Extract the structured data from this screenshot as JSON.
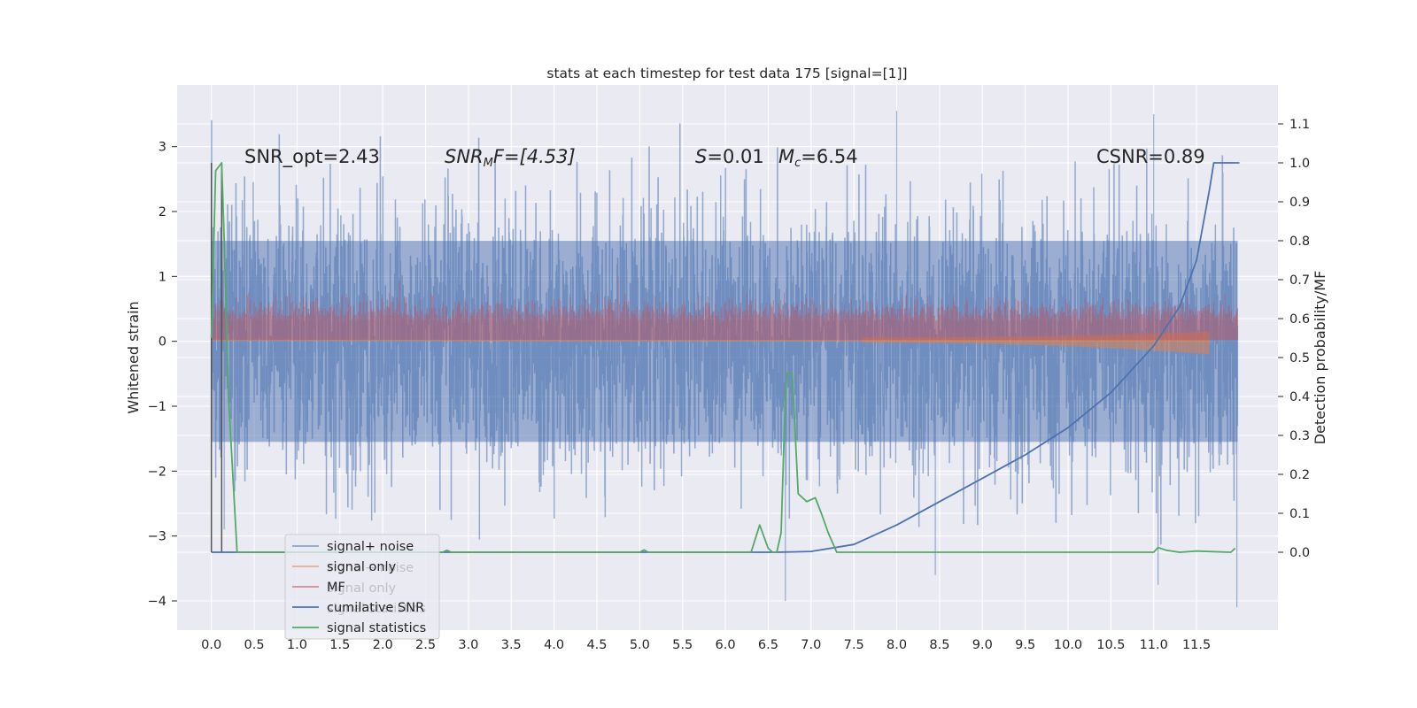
{
  "chart_data": {
    "type": "line",
    "title": "stats at each timestep for test data 175 [signal=[1]]",
    "ylabel": "Whitened strain",
    "y2label": "Detection probability/MF",
    "xlim": [
      -0.4,
      12.45
    ],
    "ylim": [
      -4.45,
      3.95
    ],
    "y2lim": [
      -0.2,
      1.2
    ],
    "grid": true,
    "legend_position": "lower-left",
    "xticks": [
      "0.0",
      "0.5",
      "1.0",
      "1.5",
      "2.0",
      "2.5",
      "3.0",
      "3.5",
      "4.0",
      "4.5",
      "5.0",
      "5.5",
      "6.0",
      "6.5",
      "7.0",
      "7.5",
      "8.0",
      "8.5",
      "9.0",
      "9.5",
      "10.0",
      "10.5",
      "11.0",
      "11.5"
    ],
    "yticks": [
      "3",
      "2",
      "1",
      "0",
      "−1",
      "−2",
      "−3",
      "−4"
    ],
    "y2ticks": [
      "1.1",
      "1.0",
      "0.9",
      "0.8",
      "0.7",
      "0.6",
      "0.5",
      "0.4",
      "0.3",
      "0.2",
      "0.1",
      "0.0"
    ],
    "annotations": {
      "snr_opt": "SNR_opt=2.43",
      "snr_mf_sym": "SNR",
      "snr_mf_sub": "M",
      "snr_mf_rest": "F=[4.53]",
      "s_sym": "S",
      "s_val": "=0.01",
      "mc_sym": "M",
      "mc_sub": "c",
      "mc_val": "=6.54",
      "csnr": "CSNR=0.89"
    },
    "series": [
      {
        "name": "signal+ noise",
        "color": "#4c72b0",
        "description_values": {
          "noise_band": [
            -1.6,
            1.6
          ],
          "max_peak": 3.6,
          "min_peak": -4.1
        }
      },
      {
        "name": "signal only",
        "color": "#dd8452",
        "values_note_t": [
          0,
          8,
          10,
          11,
          11.6
        ],
        "values": [
          0.02,
          0.0,
          -0.05,
          -0.1,
          -0.2
        ]
      },
      {
        "name": "MF",
        "color": "#c44e52",
        "band": [
          0.0,
          0.6
        ],
        "max_peak": 1.0
      },
      {
        "name": "cumilative SNR",
        "color": "#4c72b0",
        "x": [
          0,
          6.6,
          7.0,
          7.5,
          8.0,
          8.5,
          9.0,
          9.5,
          10.0,
          10.5,
          11.0,
          11.3,
          11.5,
          11.65,
          11.7,
          12.0
        ],
        "y2": [
          0,
          0,
          0.002,
          0.02,
          0.07,
          0.13,
          0.19,
          0.25,
          0.32,
          0.41,
          0.53,
          0.63,
          0.75,
          0.93,
          1.0,
          1.0
        ]
      },
      {
        "name": "signal statistics",
        "color": "#55a868",
        "x": [
          0,
          0.05,
          0.12,
          0.15,
          0.2,
          0.3,
          2.7,
          2.75,
          2.8,
          5.0,
          5.05,
          5.1,
          6.3,
          6.4,
          6.5,
          6.55,
          6.6,
          6.65,
          6.7,
          6.72,
          6.78,
          6.85,
          6.95,
          7.05,
          7.12,
          7.2,
          7.3,
          7.5,
          11.0,
          11.05,
          11.15,
          11.3,
          11.5,
          11.9,
          11.95
        ],
        "y2": [
          0.55,
          0.98,
          1.0,
          0.8,
          0.4,
          0.0,
          0.0,
          0.005,
          0.0,
          0.0,
          0.006,
          0.0,
          0.0,
          0.07,
          0.01,
          0.0,
          0.0,
          0.05,
          0.4,
          0.46,
          0.46,
          0.15,
          0.13,
          0.14,
          0.1,
          0.05,
          0.0,
          0.0,
          0.0,
          0.012,
          0.005,
          0.0,
          0.003,
          0.0,
          0.01
        ]
      },
      {
        "name": "",
        "color": "#555555",
        "note": "vertical markers",
        "x": [
          0.0,
          0.12
        ],
        "y2": [
          0,
          1.0
        ]
      }
    ],
    "legend_items": [
      "signal+ noise",
      "signal only",
      "MF",
      "cumilative SNR",
      "signal statistics"
    ],
    "legend_ghost_items": [
      "signal+ noise",
      "signal only",
      "signal statistics"
    ]
  }
}
